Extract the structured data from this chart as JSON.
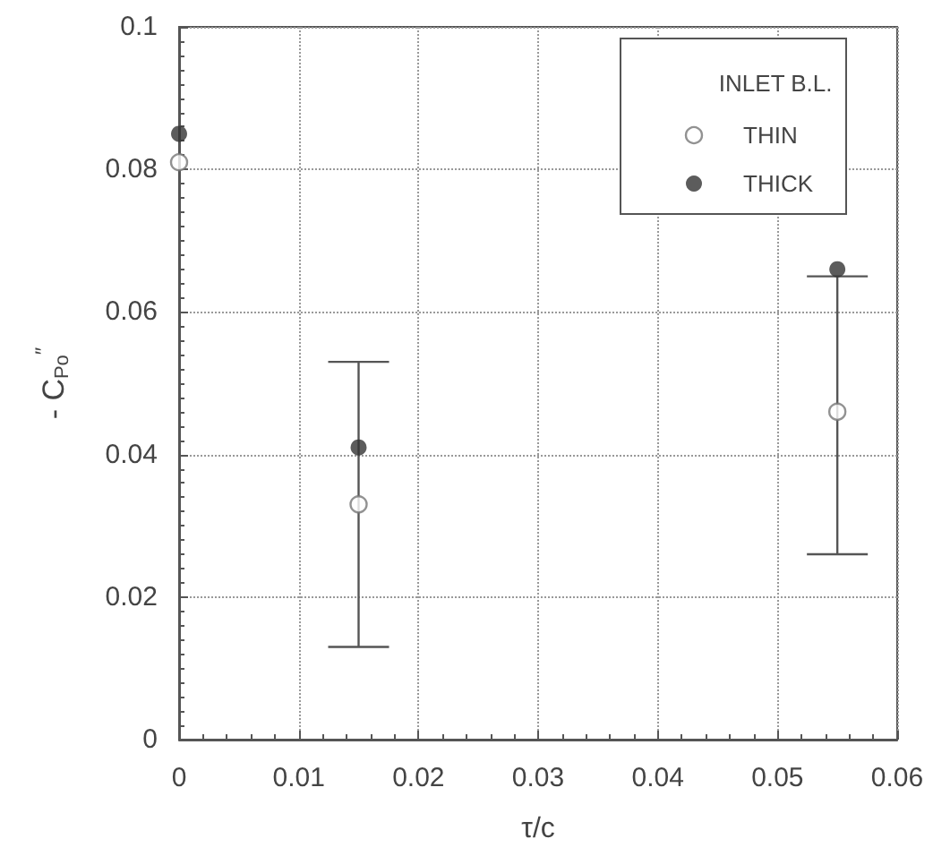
{
  "chart_data": {
    "type": "scatter",
    "xlabel": "τ/c",
    "ylabel": "- C$_{Po}$$^{″}$",
    "legend_title": "INLET B.L.",
    "x": [
      0,
      0.015,
      0.055
    ],
    "series": [
      {
        "name": "THIN",
        "color": "#777777",
        "values": [
          0.081,
          0.033,
          0.046
        ],
        "errors": [
          null,
          [
            0.013,
            0.053
          ],
          [
            0.026,
            0.065
          ]
        ]
      },
      {
        "name": "THICK",
        "color": "#333333",
        "values": [
          0.085,
          0.041,
          0.066
        ]
      }
    ],
    "xlim": [
      0,
      0.06
    ],
    "xticks": [
      0,
      0.01,
      0.02,
      0.03,
      0.04,
      0.05,
      0.06
    ],
    "ylim": [
      0,
      0.1
    ],
    "yticks": [
      0,
      0.02,
      0.04,
      0.06,
      0.08,
      0.1
    ],
    "grid": true,
    "legend": "top right",
    "marker": "circle"
  }
}
